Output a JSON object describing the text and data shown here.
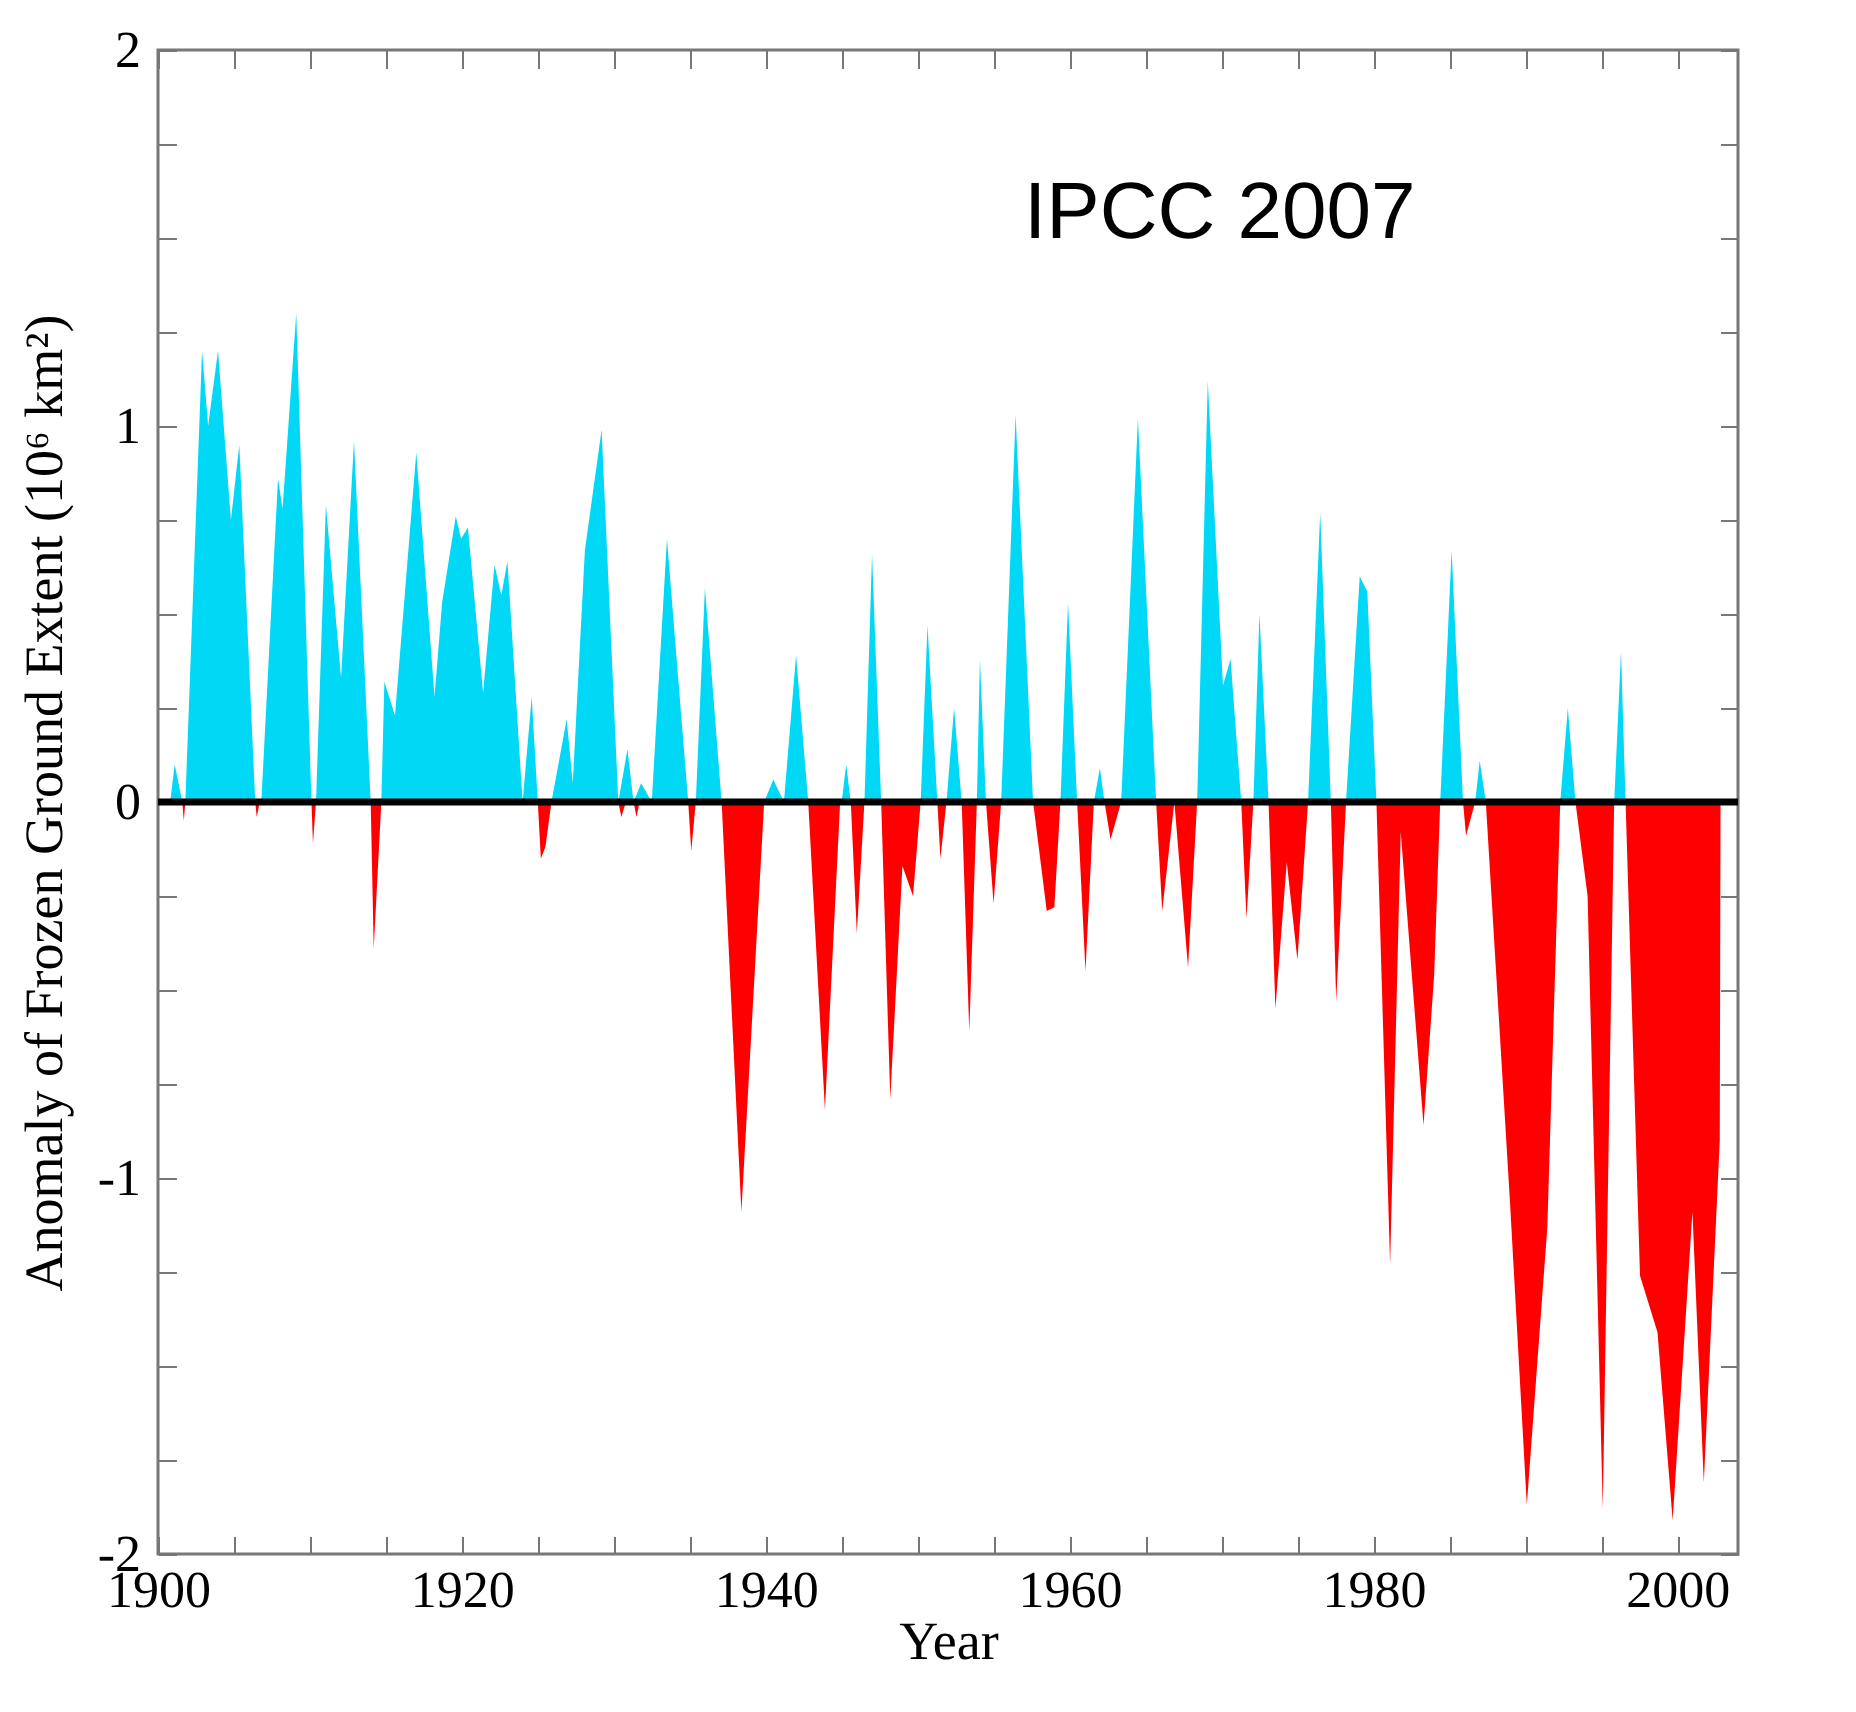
{
  "chart_data": {
    "type": "area",
    "xlabel": "Year",
    "ylabel": "Anomaly of Frozen Ground Extent (10⁶ km²)",
    "annotations": [
      "IPCC 2007"
    ],
    "xlim": [
      1900,
      2004
    ],
    "ylim": [
      -2,
      2
    ],
    "xticks": [
      1900,
      {
        "value": 1905,
        "label": null
      },
      {
        "value": 1910,
        "label": null
      },
      {
        "value": 1915,
        "label": null
      },
      1920,
      {
        "value": 1925,
        "label": null
      },
      {
        "value": 1930,
        "label": null
      },
      {
        "value": 1935,
        "label": null
      },
      1940,
      {
        "value": 1945,
        "label": null
      },
      {
        "value": 1950,
        "label": null
      },
      {
        "value": 1955,
        "label": null
      },
      1960,
      {
        "value": 1965,
        "label": null
      },
      {
        "value": 1970,
        "label": null
      },
      {
        "value": 1975,
        "label": null
      },
      1980,
      {
        "value": 1985,
        "label": null
      },
      {
        "value": 1990,
        "label": null
      },
      {
        "value": 1995,
        "label": null
      },
      2000
    ],
    "yticks": [
      -2,
      {
        "value": -1.75,
        "label": null
      },
      {
        "value": -1.5,
        "label": null
      },
      {
        "value": -1.25,
        "label": null
      },
      -1,
      {
        "value": -0.75,
        "label": null
      },
      {
        "value": -0.5,
        "label": null
      },
      {
        "value": -0.25,
        "label": null
      },
      0,
      {
        "value": 0.25,
        "label": null
      },
      {
        "value": 0.5,
        "label": null
      },
      {
        "value": 0.75,
        "label": null
      },
      1,
      {
        "value": 1.25,
        "label": null
      },
      {
        "value": 1.5,
        "label": null
      },
      {
        "value": 1.75,
        "label": null
      },
      2
    ],
    "ref_lines": [
      {
        "axis": "y",
        "value": 0,
        "color": "#000000"
      }
    ],
    "series": [
      {
        "color": "#00d8f5",
        "x": [
          1900.8,
          1901.1,
          1901.6,
          1901.8,
          1902.9,
          1903.3,
          1903.95,
          1904.8,
          1905.35,
          1906.4,
          1906.8,
          1907.9,
          1908.2,
          1909.1,
          1910.1,
          1910.4,
          1911.05,
          1912.05,
          1912.9,
          1914.0,
          1914.7,
          1914.9,
          1915.6,
          1917.0,
          1918.2,
          1918.7,
          1919.6,
          1919.95,
          1920.4,
          1921.4,
          1922.15,
          1922.6,
          1923.0,
          1924.0,
          1924.6,
          1925.0,
          1925.9,
          1926.9,
          1927.3,
          1928.1,
          1929.2,
          1930.3,
          1930.9,
          1931.3,
          1931.8,
          1932.5,
          1933.5,
          1934.9,
          1935.4,
          1936.0,
          1937.1,
          1939.9,
          1940.5,
          1941.2,
          1942.0,
          1942.8,
          1945.0,
          1945.3,
          1945.6,
          1946.5,
          1947.0,
          1947.6,
          1950.2,
          1950.65,
          1951.3,
          1951.9,
          1952.4,
          1952.9,
          1953.9,
          1954.1,
          1954.5,
          1955.5,
          1956.45,
          1957.6,
          1959.4,
          1959.9,
          1960.5,
          1961.6,
          1962.0,
          1962.3,
          1963.4,
          1964.5,
          1965.7,
          1968.4,
          1969.1,
          1970.1,
          1970.6,
          1971.3,
          1972.1,
          1972.5,
          1973.1,
          1975.7,
          1976.5,
          1977.2,
          1978.2,
          1979.1,
          1979.6,
          1980.2,
          1984.4,
          1985.15,
          1985.9,
          1986.7,
          1987.0,
          1987.4,
          1992.3,
          1992.8,
          1993.3,
          1995.85,
          1996.3,
          1996.6
        ],
        "values": [
          0,
          0.1,
          0,
          0,
          1.2,
          1.0,
          1.2,
          0.75,
          0.95,
          0,
          0,
          0.86,
          0.78,
          1.3,
          0,
          0,
          0.79,
          0.33,
          0.96,
          0,
          0,
          0.32,
          0.23,
          0.93,
          0.28,
          0.53,
          0.76,
          0.7,
          0.73,
          0.29,
          0.63,
          0.55,
          0.64,
          0,
          0.28,
          0,
          0,
          0.22,
          0.05,
          0.67,
          0.99,
          0,
          0.14,
          0,
          0.05,
          0,
          0.7,
          0,
          0,
          0.57,
          0,
          0,
          0.06,
          0,
          0.39,
          0,
          0,
          0.1,
          0,
          0,
          0.66,
          0,
          0,
          0.47,
          0,
          0,
          0.25,
          0,
          0,
          0.38,
          0,
          0,
          1.03,
          0,
          0,
          0.53,
          0,
          0,
          0.09,
          0,
          0,
          1.02,
          0,
          0,
          1.12,
          0.31,
          0.38,
          0,
          0,
          0.5,
          0,
          0,
          0.77,
          0,
          0,
          0.6,
          0.56,
          0,
          0,
          0.67,
          0,
          0,
          0.11,
          0,
          0,
          0.25,
          0,
          0,
          0.4,
          0
        ]
      },
      {
        "color": "#ff0000",
        "x": [
          1901.6,
          1901.7,
          1901.8,
          1906.4,
          1906.5,
          1906.7,
          1910.1,
          1910.2,
          1910.4,
          1914.0,
          1914.2,
          1914.7,
          1925.0,
          1925.2,
          1925.5,
          1925.9,
          1930.3,
          1930.5,
          1930.8,
          1931.3,
          1931.5,
          1931.7,
          1934.9,
          1935.1,
          1935.4,
          1937.1,
          1938.4,
          1939.9,
          1942.8,
          1943.9,
          1944.9,
          1945.6,
          1946.0,
          1946.5,
          1947.6,
          1948.2,
          1949.0,
          1949.7,
          1950.2,
          1951.3,
          1951.5,
          1951.9,
          1952.9,
          1953.4,
          1953.9,
          1954.5,
          1955.0,
          1955.5,
          1957.6,
          1958.5,
          1959.0,
          1959.4,
          1960.5,
          1961.05,
          1961.6,
          1962.3,
          1962.7,
          1963.4,
          1965.7,
          1966.1,
          1966.9,
          1967.8,
          1968.4,
          1971.3,
          1971.65,
          1972.1,
          1973.1,
          1973.55,
          1974.3,
          1975.0,
          1975.7,
          1977.2,
          1977.55,
          1978.2,
          1980.2,
          1981.1,
          1981.8,
          1983.3,
          1984.0,
          1984.4,
          1985.9,
          1986.1,
          1986.7,
          1987.4,
          1989.0,
          1990.1,
          1991.45,
          1992.3,
          1993.3,
          1994.1,
          1995.1,
          1995.85,
          1996.6,
          1997.55,
          1998.7,
          1999.7,
          2001.0,
          2001.75,
          2002.8,
          2002.85
        ],
        "values": [
          0,
          -0.05,
          0,
          0,
          -0.04,
          0,
          0,
          -0.11,
          0,
          0,
          -0.39,
          0,
          0,
          -0.15,
          -0.12,
          0,
          0,
          -0.04,
          0,
          0,
          -0.04,
          0,
          0,
          -0.13,
          0,
          0,
          -1.09,
          0,
          0,
          -0.82,
          0,
          0,
          -0.35,
          0,
          0,
          -0.79,
          -0.17,
          -0.25,
          0,
          0,
          -0.15,
          0,
          0,
          -0.61,
          0,
          0,
          -0.27,
          0,
          0,
          -0.29,
          -0.28,
          0,
          0,
          -0.45,
          0,
          0,
          -0.1,
          0,
          0,
          -0.29,
          0,
          -0.44,
          0,
          0,
          -0.31,
          0,
          0,
          -0.55,
          -0.16,
          -0.42,
          0,
          0,
          -0.53,
          0,
          0,
          -1.23,
          -0.08,
          -0.86,
          -0.46,
          0,
          0,
          -0.09,
          0,
          0,
          -1.07,
          -1.87,
          -1.13,
          0,
          0,
          -0.25,
          -1.88,
          0,
          0,
          -1.26,
          -1.41,
          -1.91,
          -1.09,
          -1.81,
          -0.9,
          0
        ]
      }
    ]
  }
}
